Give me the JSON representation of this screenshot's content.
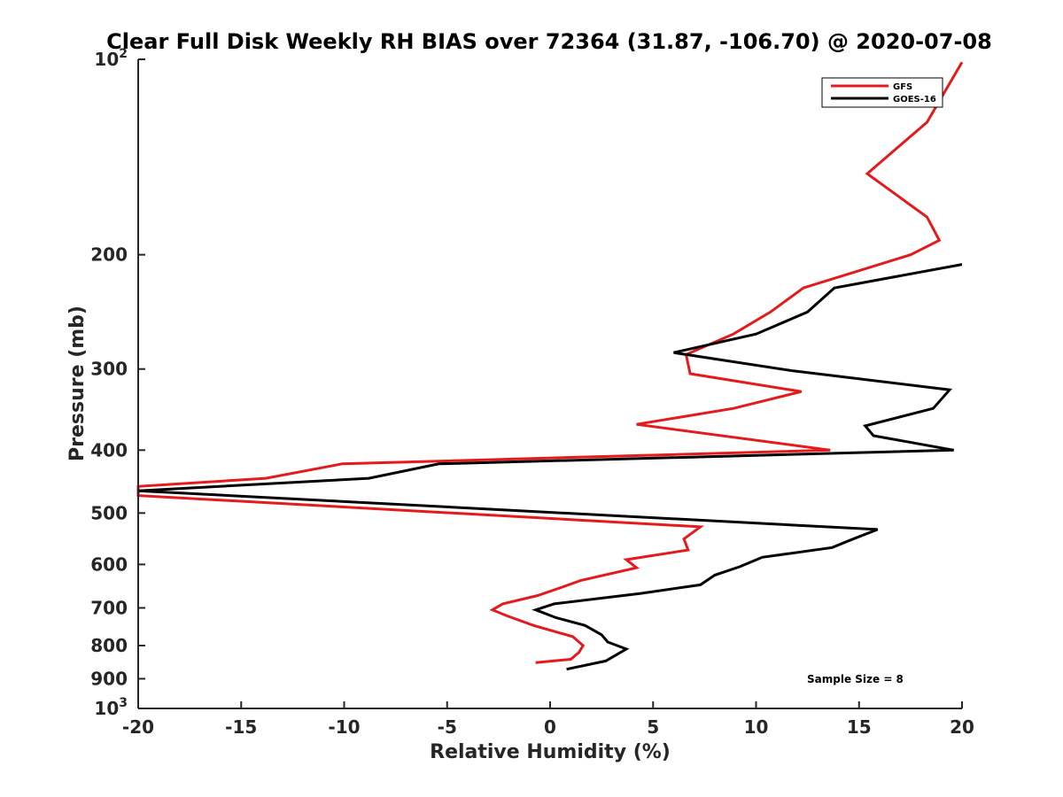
{
  "chart_data": {
    "type": "line",
    "title": "Clear Full Disk Weekly RH BIAS over 72364 (31.87, -106.70) @ 2020-07-08",
    "xlabel": "Relative Humidity (%)",
    "ylabel": "Pressure (mb)",
    "xlim": [
      -20,
      20
    ],
    "ylim": [
      100,
      1000
    ],
    "y_scale": "log",
    "y_inverted": true,
    "grid": false,
    "legend_position": "top-right",
    "x_ticks": [
      "-20",
      "-15",
      "-10",
      "-5",
      "0",
      "5",
      "10",
      "15",
      "20"
    ],
    "y_ticks": [
      {
        "value": 100,
        "base": "10",
        "exp": "2"
      },
      {
        "value": 200,
        "label": "200"
      },
      {
        "value": 300,
        "label": "300"
      },
      {
        "value": 400,
        "label": "400"
      },
      {
        "value": 500,
        "label": "500"
      },
      {
        "value": 600,
        "label": "600"
      },
      {
        "value": 700,
        "label": "700"
      },
      {
        "value": 800,
        "label": "800"
      },
      {
        "value": 900,
        "label": "900"
      },
      {
        "value": 1000,
        "base": "10",
        "exp": "3"
      }
    ],
    "series": [
      {
        "name": "GFS",
        "color": "#e41a1c",
        "points": [
          {
            "x": 20.0,
            "y": 101
          },
          {
            "x": 18.3,
            "y": 125
          },
          {
            "x": 15.4,
            "y": 150
          },
          {
            "x": 18.3,
            "y": 175
          },
          {
            "x": 18.9,
            "y": 190
          },
          {
            "x": 17.5,
            "y": 200
          },
          {
            "x": 12.3,
            "y": 225
          },
          {
            "x": 10.7,
            "y": 245
          },
          {
            "x": 8.9,
            "y": 265
          },
          {
            "x": 6.6,
            "y": 285
          },
          {
            "x": 6.8,
            "y": 305
          },
          {
            "x": 12.2,
            "y": 325
          },
          {
            "x": 8.9,
            "y": 345
          },
          {
            "x": 4.2,
            "y": 365
          },
          {
            "x": 13.6,
            "y": 400
          },
          {
            "x": -10.1,
            "y": 420
          },
          {
            "x": -13.8,
            "y": 442
          },
          {
            "x": -20.0,
            "y": 455
          },
          {
            "x": -20.0,
            "y": 470
          },
          {
            "x": 7.3,
            "y": 525
          },
          {
            "x": 6.5,
            "y": 548
          },
          {
            "x": 6.7,
            "y": 570
          },
          {
            "x": 3.7,
            "y": 590
          },
          {
            "x": 4.2,
            "y": 607
          },
          {
            "x": 1.5,
            "y": 635
          },
          {
            "x": 0.6,
            "y": 650
          },
          {
            "x": -0.6,
            "y": 670
          },
          {
            "x": -2.3,
            "y": 690
          },
          {
            "x": -2.8,
            "y": 705
          },
          {
            "x": -2.1,
            "y": 720
          },
          {
            "x": -0.8,
            "y": 745
          },
          {
            "x": 1.1,
            "y": 775
          },
          {
            "x": 1.6,
            "y": 800
          },
          {
            "x": 1.4,
            "y": 820
          },
          {
            "x": 1.0,
            "y": 840
          },
          {
            "x": -0.7,
            "y": 850
          }
        ]
      },
      {
        "name": "GOES-16",
        "color": "#000000",
        "points": [
          {
            "x": 20.0,
            "y": 207
          },
          {
            "x": 13.8,
            "y": 225
          },
          {
            "x": 12.5,
            "y": 245
          },
          {
            "x": 10.0,
            "y": 265
          },
          {
            "x": 6.0,
            "y": 283
          },
          {
            "x": 11.8,
            "y": 302
          },
          {
            "x": 19.4,
            "y": 323
          },
          {
            "x": 18.6,
            "y": 345
          },
          {
            "x": 15.3,
            "y": 367
          },
          {
            "x": 15.7,
            "y": 380
          },
          {
            "x": 19.6,
            "y": 400
          },
          {
            "x": -5.4,
            "y": 420
          },
          {
            "x": -8.8,
            "y": 442
          },
          {
            "x": -20.0,
            "y": 462
          },
          {
            "x": 15.9,
            "y": 530
          },
          {
            "x": 14.6,
            "y": 550
          },
          {
            "x": 13.7,
            "y": 565
          },
          {
            "x": 10.3,
            "y": 585
          },
          {
            "x": 9.2,
            "y": 605
          },
          {
            "x": 8.0,
            "y": 623
          },
          {
            "x": 7.3,
            "y": 645
          },
          {
            "x": 4.4,
            "y": 665
          },
          {
            "x": 0.2,
            "y": 690
          },
          {
            "x": -0.7,
            "y": 705
          },
          {
            "x": 0.3,
            "y": 725
          },
          {
            "x": 1.7,
            "y": 745
          },
          {
            "x": 2.5,
            "y": 770
          },
          {
            "x": 2.8,
            "y": 790
          },
          {
            "x": 3.7,
            "y": 810
          },
          {
            "x": 2.7,
            "y": 845
          },
          {
            "x": 0.8,
            "y": 870
          }
        ]
      }
    ],
    "annotations": [
      {
        "text": "Sample Size = 8",
        "position": "bottom-right"
      }
    ]
  }
}
